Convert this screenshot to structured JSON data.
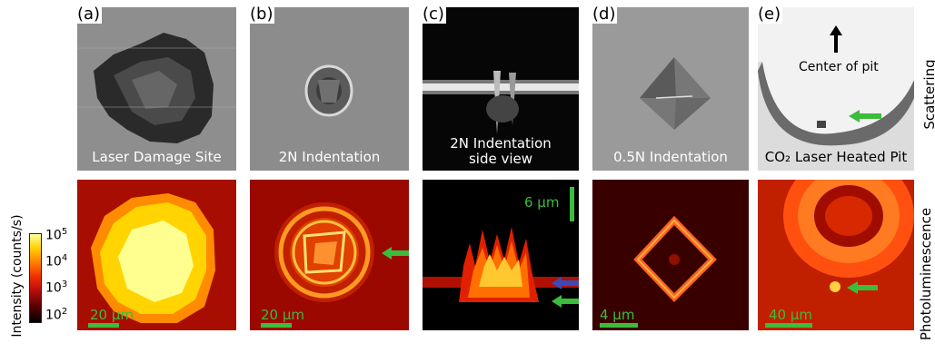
{
  "panel_labels": [
    "(a)",
    "(b)",
    "(c)",
    "(d)",
    "(e)"
  ],
  "captions": {
    "a": "Laser Damage Site",
    "b": "2N Indentation",
    "c_line1": "2N Indentation",
    "c_line2": "side view",
    "d": "0.5N Indentation",
    "e": "CO₂ Laser Heated Pit",
    "e_annotation": "Center of pit"
  },
  "row_labels": {
    "top": "Scattering",
    "bottom": "Photoluminescence"
  },
  "colorbar": {
    "label": "Intensity (counts/s)",
    "ticks": [
      "10",
      "10",
      "10",
      "10"
    ],
    "exponents": [
      "5",
      "4",
      "3",
      "2"
    ]
  },
  "scale_bars": {
    "a": "20 μm",
    "b": "20 μm",
    "c": "6 μm",
    "d": "4 μm",
    "e": "40 μm"
  },
  "colors": {
    "scale_bar": "#3cbc3c",
    "green_arrow": "#3cbc3c",
    "blue_arrow": "#3a4ab8"
  }
}
